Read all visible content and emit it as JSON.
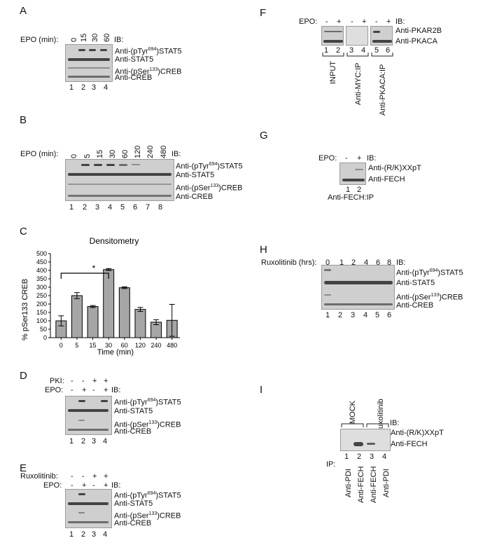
{
  "panels": {
    "A": "A",
    "B": "B",
    "C": "C",
    "D": "D",
    "E": "E",
    "F": "F",
    "G": "G",
    "H": "H",
    "I": "I"
  },
  "a": {
    "treatment": "EPO (min):",
    "times": [
      "0",
      "15",
      "30",
      "60"
    ],
    "ib": "IB:",
    "rows": [
      "Anti-(pTyr694)STAT5",
      "Anti-STAT5",
      "Anti-(pSer133)CREB",
      "Anti-CREB"
    ],
    "lanes": [
      "1",
      "2",
      "3",
      "4"
    ]
  },
  "b": {
    "treatment": "EPO (min):",
    "times": [
      "0",
      "5",
      "15",
      "30",
      "60",
      "120",
      "240",
      "480"
    ],
    "ib": "IB:",
    "rows": [
      "Anti-(pTyr694)STAT5",
      "Anti-STAT5",
      "Anti-(pSer133)CREB",
      "Anti-CREB"
    ],
    "lanes": [
      "1",
      "2",
      "3",
      "4",
      "5",
      "6",
      "7",
      "8"
    ]
  },
  "c": {
    "significance": "*"
  },
  "chart_data": {
    "type": "bar",
    "title": "Densitometry",
    "xlabel": "Time (min)",
    "ylabel": "% pSer133 CREB",
    "categories": [
      "0",
      "5",
      "15",
      "30",
      "60",
      "120",
      "240",
      "480"
    ],
    "values": [
      100,
      250,
      185,
      405,
      297,
      168,
      92,
      103
    ],
    "errors": [
      30,
      18,
      6,
      6,
      5,
      12,
      15,
      95
    ],
    "ylim": [
      0,
      500
    ],
    "yticks": [
      0,
      50,
      100,
      150,
      200,
      250,
      300,
      350,
      400,
      450,
      500
    ],
    "bar_color": "#a6a6a6"
  },
  "d": {
    "pki": "PKI:",
    "epo": "EPO:",
    "pki_signs": [
      "-",
      "-",
      "+",
      "+"
    ],
    "epo_signs": [
      "-",
      "+",
      "-",
      "+"
    ],
    "ib": "IB:",
    "rows": [
      "Anti-(pTyr694)STAT5",
      "Anti-STAT5",
      "Anti-(pSer133)CREB",
      "Anti-CREB"
    ],
    "lanes": [
      "1",
      "2",
      "3",
      "4"
    ]
  },
  "e": {
    "rux": "Ruxolitinib:",
    "epo": "EPO:",
    "rux_signs": [
      "-",
      "-",
      "+",
      "+"
    ],
    "epo_signs": [
      "-",
      "+",
      "-",
      "+"
    ],
    "ib": "IB:",
    "rows": [
      "Anti-(pTyr694)STAT5",
      "Anti-STAT5",
      "Anti-(pSer133)CREB",
      "Anti-CREB"
    ],
    "lanes": [
      "1",
      "2",
      "3",
      "4"
    ]
  },
  "f": {
    "epo": "EPO:",
    "signs": [
      "-",
      "+",
      "-",
      "+",
      "-",
      "+"
    ],
    "ib": "IB:",
    "rows": [
      "Anti-PKAR2B",
      "Anti-PKACA"
    ],
    "lanes": [
      "1",
      "2",
      "3",
      "4",
      "5",
      "6"
    ],
    "groups": [
      "INPUT",
      "Anti-MYC:IP",
      "Anti-PKACA:IP"
    ]
  },
  "g": {
    "epo": "EPO:",
    "signs": [
      "-",
      "+"
    ],
    "ib": "IB:",
    "rows": [
      "Anti-(R/K)XXpT",
      "Anti-FECH"
    ],
    "lanes": [
      "1",
      "2"
    ],
    "footer": "Anti-FECH:IP"
  },
  "h": {
    "treatment": "Ruxolitinib (hrs):",
    "times": [
      "0",
      "1",
      "2",
      "4",
      "6",
      "8"
    ],
    "ib": "IB:",
    "rows": [
      "Anti-(pTyr694)STAT5",
      "Anti-STAT5",
      "Anti-(pSer133)CREB",
      "Anti-CREB"
    ],
    "lanes": [
      "1",
      "2",
      "3",
      "4",
      "5",
      "6"
    ]
  },
  "i": {
    "groups": [
      "MOCK",
      "Ruxolitinib"
    ],
    "ib": "IB:",
    "rows": [
      "Anti-(R/K)XXpT",
      "Anti-FECH"
    ],
    "lanes": [
      "1",
      "2",
      "3",
      "4"
    ],
    "ip": "IP:",
    "ip_labels": [
      "Anti-PDI",
      "Anti-FECH",
      "Anti-FECH",
      "Anti-PDI"
    ]
  }
}
